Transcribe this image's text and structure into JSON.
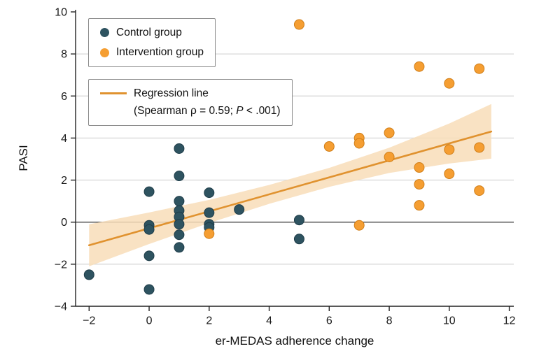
{
  "chart_data": {
    "type": "scatter",
    "title": "",
    "xlabel": "er-MEDAS adherence change",
    "ylabel": "PASI",
    "xlim": [
      -2.45,
      12.15
    ],
    "ylim": [
      -4,
      10.1
    ],
    "xticks": [
      -2,
      0,
      2,
      4,
      6,
      8,
      10,
      12
    ],
    "yticks": [
      -4,
      -2,
      0,
      2,
      4,
      6,
      8,
      10
    ],
    "gridlines_y": [
      -2,
      2,
      4,
      6,
      8
    ],
    "zero_line_y": 0,
    "grid": "horizontal-only",
    "legend_position": "upper-left-inside",
    "series": [
      {
        "name": "Control group",
        "color": "#2e5360",
        "edge": "#1f3d49",
        "points": [
          [
            -2,
            -2.5
          ],
          [
            0,
            1.45
          ],
          [
            0,
            -0.15
          ],
          [
            0,
            -0.35
          ],
          [
            0,
            -1.6
          ],
          [
            0,
            -3.2
          ],
          [
            1,
            3.5
          ],
          [
            1,
            2.2
          ],
          [
            1,
            1.0
          ],
          [
            1,
            0.55
          ],
          [
            1,
            0.25
          ],
          [
            1,
            -0.1
          ],
          [
            1,
            -0.6
          ],
          [
            1,
            -1.2
          ],
          [
            2,
            1.4
          ],
          [
            2,
            0.45
          ],
          [
            2,
            -0.1
          ],
          [
            2,
            -0.25
          ],
          [
            3,
            0.6
          ],
          [
            5,
            0.1
          ],
          [
            5,
            -0.8
          ]
        ]
      },
      {
        "name": "Intervention group",
        "color": "#f59e32",
        "edge": "#d07e18",
        "points": [
          [
            2,
            -0.55
          ],
          [
            5,
            9.4
          ],
          [
            6,
            3.6
          ],
          [
            7,
            4.0
          ],
          [
            7,
            3.75
          ],
          [
            7,
            -0.15
          ],
          [
            8,
            4.25
          ],
          [
            8,
            3.1
          ],
          [
            9,
            7.4
          ],
          [
            9,
            2.6
          ],
          [
            9,
            1.8
          ],
          [
            9,
            0.8
          ],
          [
            10,
            6.6
          ],
          [
            10,
            3.45
          ],
          [
            10,
            2.3
          ],
          [
            11,
            7.3
          ],
          [
            11,
            3.55
          ],
          [
            11,
            1.5
          ]
        ]
      }
    ],
    "regression": {
      "label": "Regression line",
      "stat": "(Spearman ρ = 0.59; P < .001)",
      "color": "#e0922f",
      "band_color": "#f8ddb8",
      "x": [
        -2,
        11.4
      ],
      "y": [
        -1.1,
        4.31
      ],
      "band": {
        "x": [
          -2,
          0,
          2,
          4,
          6,
          8,
          10,
          11.4
        ],
        "upper": [
          -0.1,
          0.46,
          1.06,
          1.77,
          2.58,
          3.54,
          4.69,
          5.62
        ],
        "lower": [
          -2.1,
          -1.04,
          -0.04,
          0.87,
          1.68,
          2.34,
          2.79,
          3.02
        ]
      }
    }
  },
  "legend": {
    "stat_prefix": "(Spearman ρ = 0.59; ",
    "stat_p": "P",
    "stat_suffix": " < .001)"
  }
}
